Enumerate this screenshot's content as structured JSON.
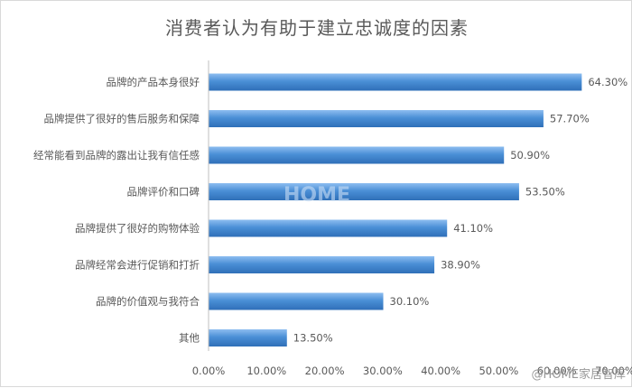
{
  "chart_data": {
    "type": "bar",
    "orientation": "horizontal",
    "title": "消费者认为有助于建立忠诚度的因素",
    "categories": [
      "品牌的产品本身很好",
      "品牌提供了很好的售后服务和保障",
      "经常能看到品牌的露出让我有信任感",
      "品牌评价和口碑",
      "品牌提供了很好的购物体验",
      "品牌经常会进行促销和打折",
      "品牌的价值观与我符合",
      "其他"
    ],
    "values": [
      64.3,
      57.7,
      50.9,
      53.5,
      41.1,
      38.9,
      30.1,
      13.5
    ],
    "value_labels": [
      "64.30%",
      "57.70%",
      "50.90%",
      "53.50%",
      "41.10%",
      "38.90%",
      "30.10%",
      "13.50%"
    ],
    "xlim": [
      0,
      70
    ],
    "x_ticks": [
      "0.00%",
      "10.00%",
      "20.00%",
      "30.00%",
      "40.00%",
      "50.00%",
      "60.00%",
      "70.00%"
    ],
    "bar_color": "#4a8fd6",
    "grid": false,
    "legend": "none"
  },
  "watermark": {
    "center_text": "HOME",
    "corner_text": "@HOME家居智库"
  }
}
